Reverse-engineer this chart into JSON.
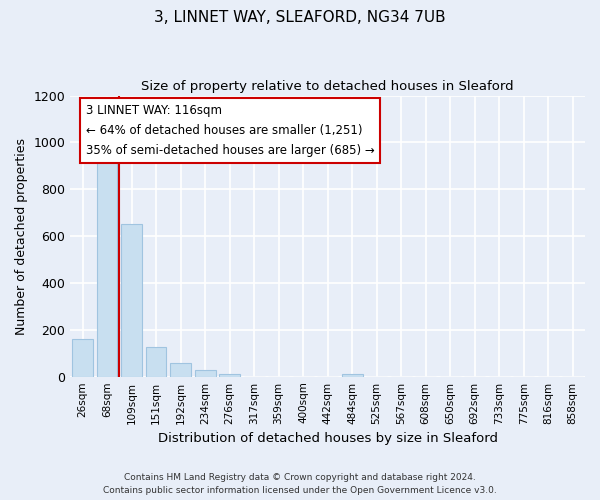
{
  "title": "3, LINNET WAY, SLEAFORD, NG34 7UB",
  "subtitle": "Size of property relative to detached houses in Sleaford",
  "xlabel": "Distribution of detached houses by size in Sleaford",
  "ylabel": "Number of detached properties",
  "bar_labels": [
    "26sqm",
    "68sqm",
    "109sqm",
    "151sqm",
    "192sqm",
    "234sqm",
    "276sqm",
    "317sqm",
    "359sqm",
    "400sqm",
    "442sqm",
    "484sqm",
    "525sqm",
    "567sqm",
    "608sqm",
    "650sqm",
    "692sqm",
    "733sqm",
    "775sqm",
    "816sqm",
    "858sqm"
  ],
  "bar_values": [
    160,
    930,
    650,
    125,
    60,
    28,
    10,
    0,
    0,
    0,
    0,
    10,
    0,
    0,
    0,
    0,
    0,
    0,
    0,
    0,
    0
  ],
  "bar_color": "#c8dff0",
  "bar_edge_color": "#a0c4e0",
  "property_line_color": "#cc0000",
  "annotation_title": "3 LINNET WAY: 116sqm",
  "annotation_line1": "← 64% of detached houses are smaller (1,251)",
  "annotation_line2": "35% of semi-detached houses are larger (685) →",
  "annotation_box_edge": "#cc0000",
  "annotation_box_bg": "#ffffff",
  "ylim": [
    0,
    1200
  ],
  "yticks": [
    0,
    200,
    400,
    600,
    800,
    1000,
    1200
  ],
  "footer_line1": "Contains HM Land Registry data © Crown copyright and database right 2024.",
  "footer_line2": "Contains public sector information licensed under the Open Government Licence v3.0.",
  "bg_color": "#e8eef8",
  "grid_color": "#ffffff",
  "line_x_index": 1.5
}
